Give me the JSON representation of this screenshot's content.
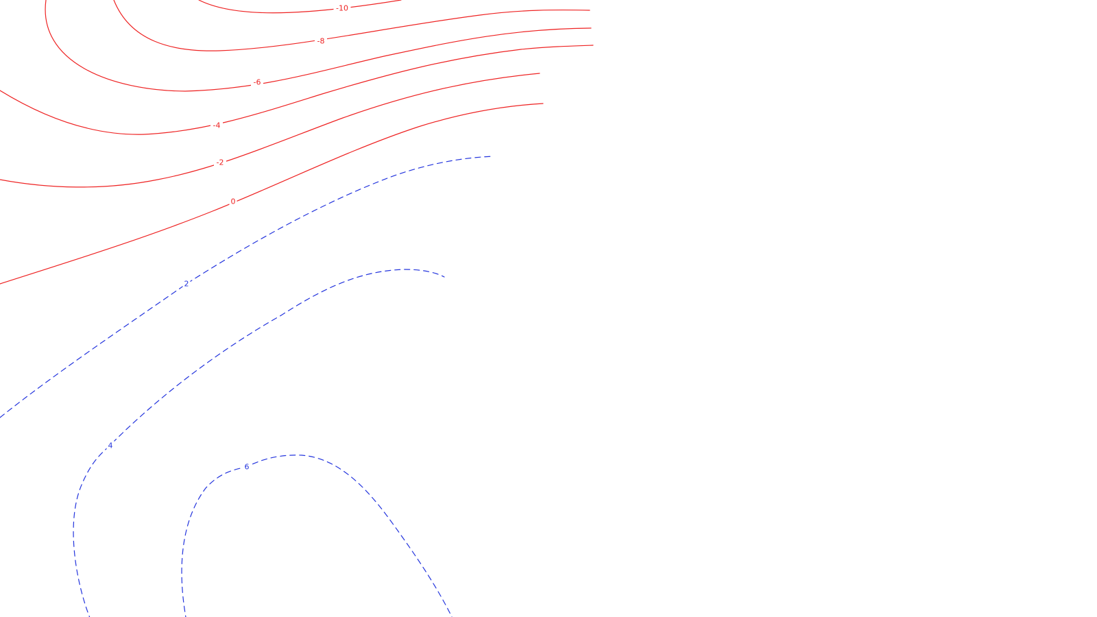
{
  "chart_data": {
    "type": "contour",
    "grid": false,
    "colors": {
      "negative": "#ee2222",
      "positive": "#2233dd"
    },
    "levels": [
      {
        "level": -10,
        "label": "-10",
        "style": "solid"
      },
      {
        "level": -8,
        "label": "-8",
        "style": "solid"
      },
      {
        "level": -6,
        "label": "-6",
        "style": "solid"
      },
      {
        "level": -4,
        "label": "-4",
        "style": "solid"
      },
      {
        "level": -2,
        "label": "-2",
        "style": "solid"
      },
      {
        "level": 0,
        "label": "0",
        "style": "solid"
      },
      {
        "level": 2,
        "label": "2",
        "style": "dashed"
      },
      {
        "level": 4,
        "label": "4",
        "style": "dashed"
      },
      {
        "level": 6,
        "label": "6",
        "style": "dashed"
      }
    ]
  }
}
